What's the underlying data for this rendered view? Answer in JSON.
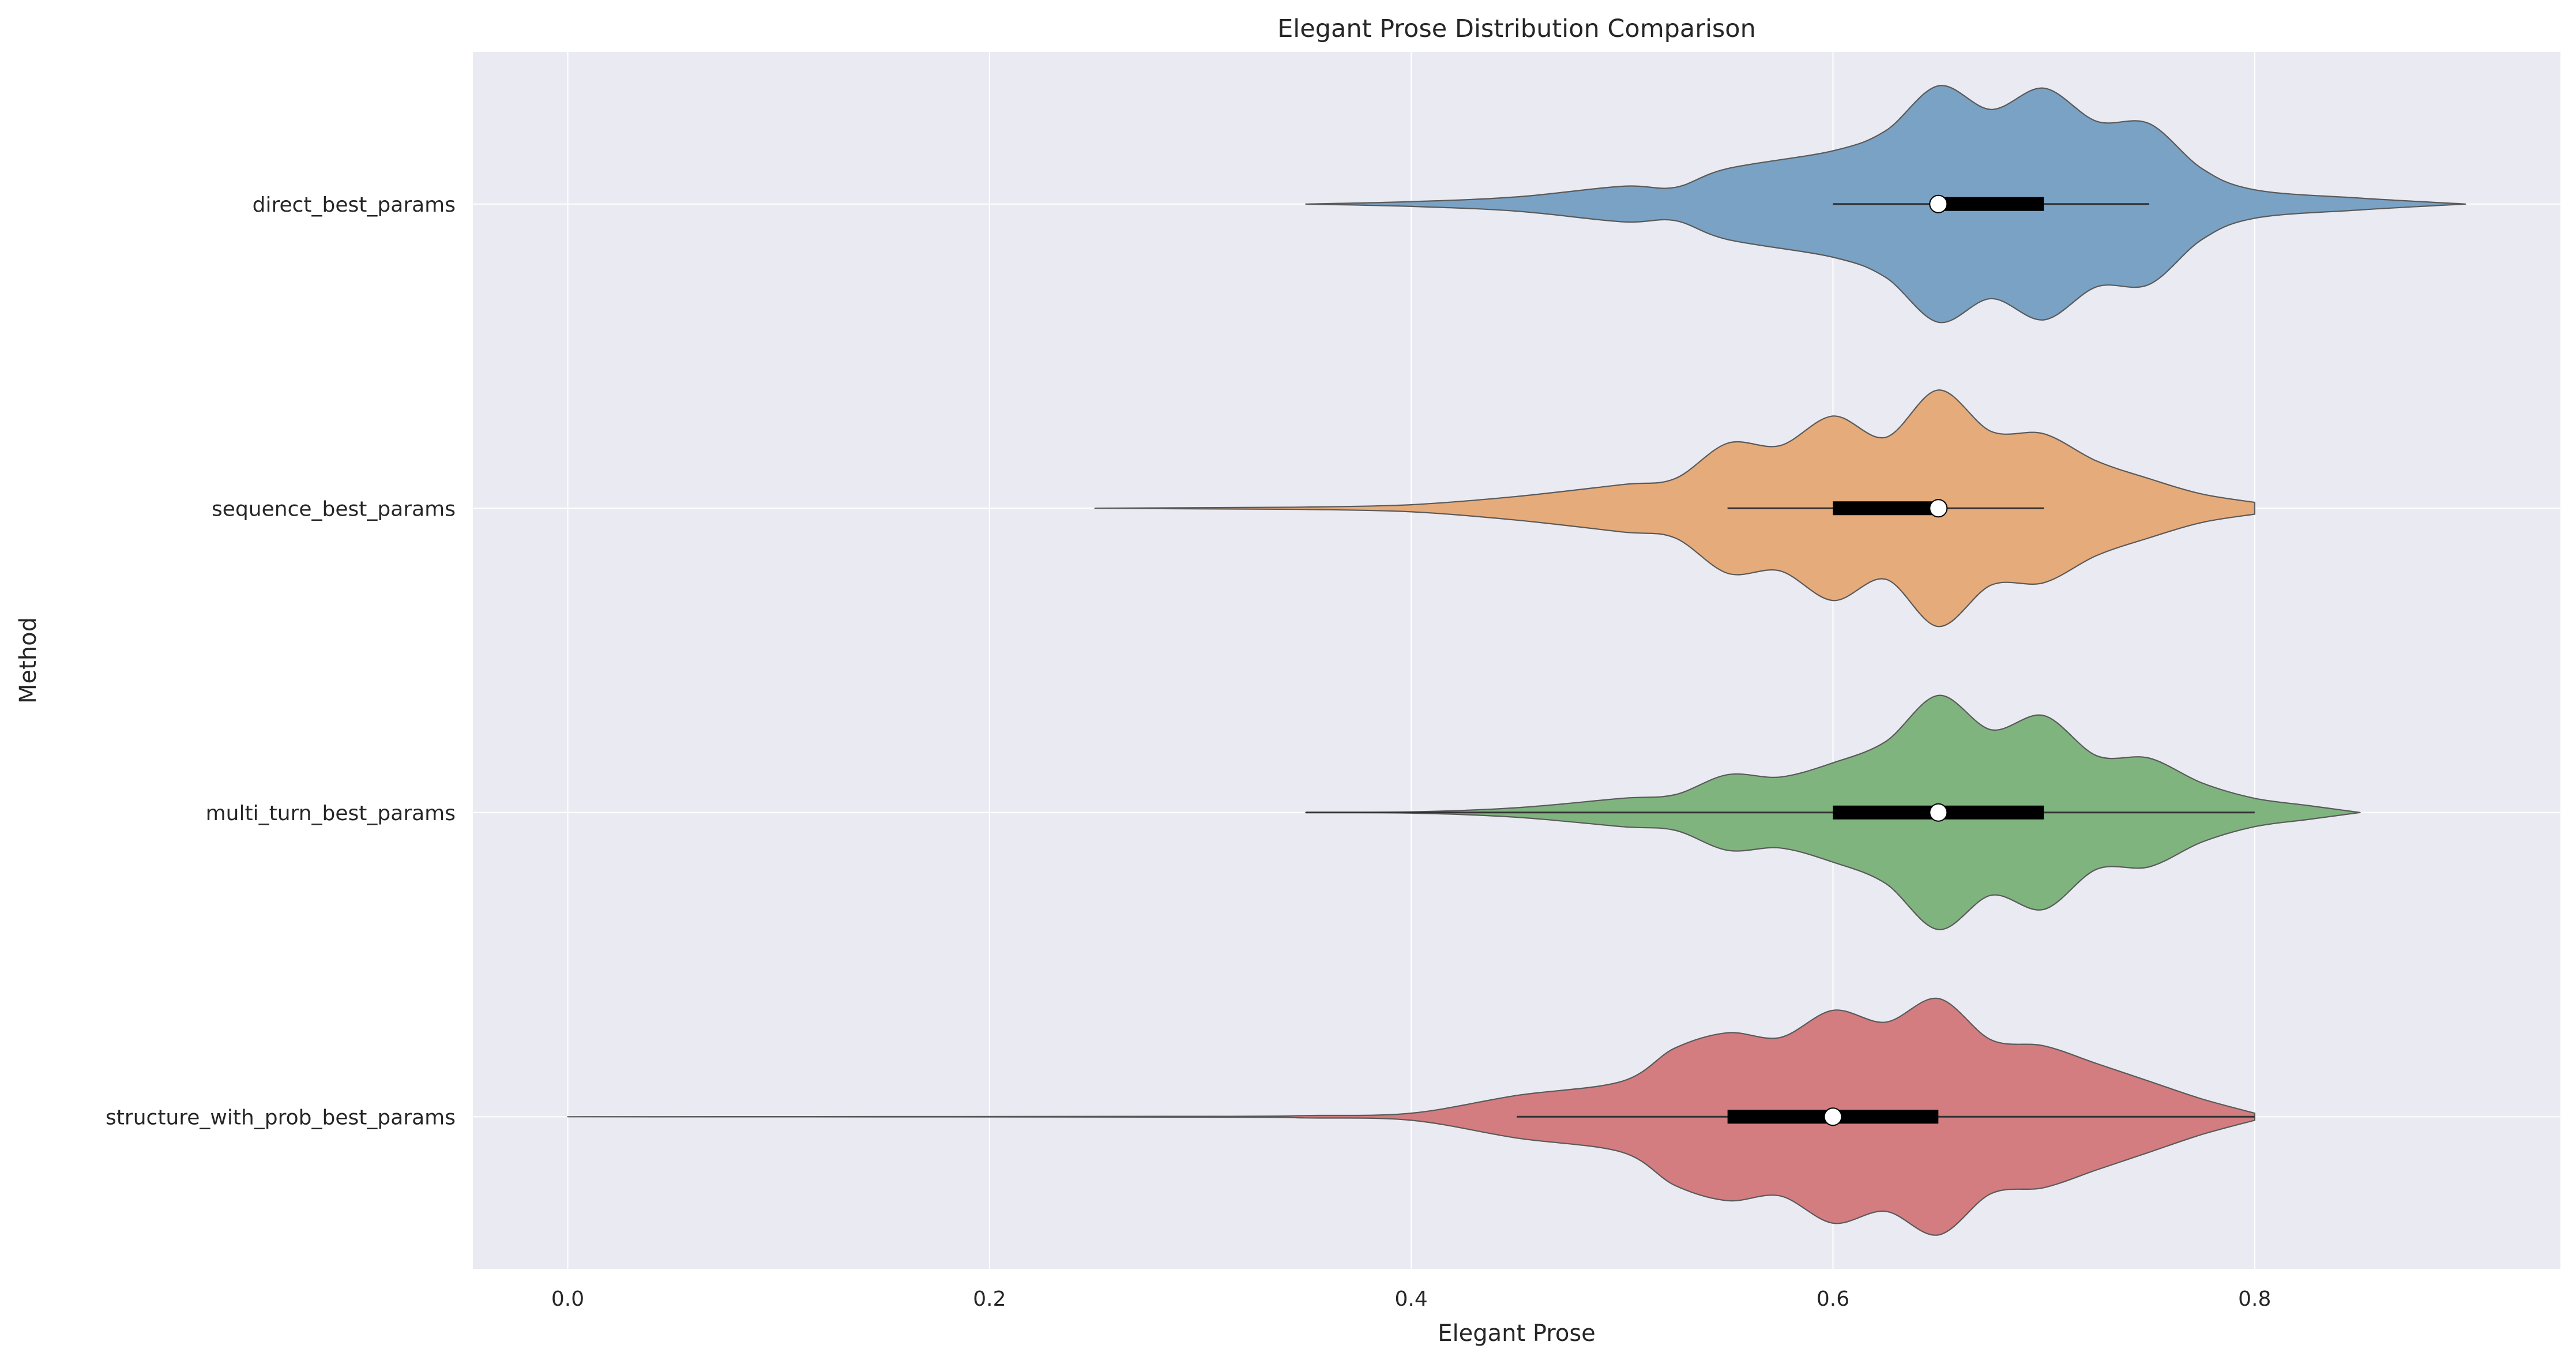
{
  "chart_data": {
    "type": "violin",
    "orientation": "horizontal",
    "title": "Elegant Prose Distribution Comparison",
    "xlabel": "Elegant Prose",
    "ylabel": "Method",
    "xlim": [
      -0.045,
      0.945
    ],
    "x_ticks": [
      "0.0",
      "0.2",
      "0.4",
      "0.6",
      "0.8"
    ],
    "grid": true,
    "legend": "none",
    "categories": [
      "direct_best_params",
      "sequence_best_params",
      "multi_turn_best_params",
      "structure_with_prob_best_params"
    ],
    "series": [
      {
        "category": "direct_best_params",
        "color": "#7aa2c4",
        "range": [
          0.35,
          0.9
        ],
        "whisker": [
          0.6,
          0.75
        ],
        "q1": 0.65,
        "q3": 0.7,
        "median": 0.65,
        "density": [
          [
            0.35,
            0.0
          ],
          [
            0.4,
            0.02
          ],
          [
            0.45,
            0.06
          ],
          [
            0.5,
            0.15
          ],
          [
            0.525,
            0.14
          ],
          [
            0.55,
            0.3
          ],
          [
            0.6,
            0.45
          ],
          [
            0.625,
            0.62
          ],
          [
            0.65,
            1.0
          ],
          [
            0.675,
            0.8
          ],
          [
            0.7,
            0.98
          ],
          [
            0.725,
            0.7
          ],
          [
            0.75,
            0.68
          ],
          [
            0.775,
            0.3
          ],
          [
            0.8,
            0.12
          ],
          [
            0.85,
            0.05
          ],
          [
            0.9,
            0.0
          ]
        ]
      },
      {
        "category": "sequence_best_params",
        "color": "#e6ab7a",
        "range": [
          0.25,
          0.8
        ],
        "whisker": [
          0.55,
          0.7
        ],
        "q1": 0.6,
        "q3": 0.65,
        "median": 0.65,
        "density": [
          [
            0.25,
            0.0
          ],
          [
            0.3,
            0.005
          ],
          [
            0.35,
            0.01
          ],
          [
            0.4,
            0.03
          ],
          [
            0.45,
            0.1
          ],
          [
            0.5,
            0.2
          ],
          [
            0.525,
            0.25
          ],
          [
            0.55,
            0.55
          ],
          [
            0.575,
            0.53
          ],
          [
            0.6,
            0.78
          ],
          [
            0.625,
            0.6
          ],
          [
            0.65,
            1.0
          ],
          [
            0.675,
            0.65
          ],
          [
            0.7,
            0.63
          ],
          [
            0.725,
            0.4
          ],
          [
            0.75,
            0.25
          ],
          [
            0.775,
            0.12
          ],
          [
            0.8,
            0.05
          ]
        ]
      },
      {
        "category": "multi_turn_best_params",
        "color": "#80b47f",
        "range": [
          0.35,
          0.85
        ],
        "whisker": [
          0.35,
          0.8
        ],
        "q1": 0.6,
        "q3": 0.7,
        "median": 0.65,
        "density": [
          [
            0.35,
            0.0
          ],
          [
            0.4,
            0.005
          ],
          [
            0.45,
            0.04
          ],
          [
            0.5,
            0.12
          ],
          [
            0.525,
            0.15
          ],
          [
            0.55,
            0.32
          ],
          [
            0.575,
            0.3
          ],
          [
            0.6,
            0.42
          ],
          [
            0.625,
            0.6
          ],
          [
            0.65,
            0.99
          ],
          [
            0.675,
            0.7
          ],
          [
            0.7,
            0.82
          ],
          [
            0.725,
            0.48
          ],
          [
            0.75,
            0.46
          ],
          [
            0.775,
            0.25
          ],
          [
            0.8,
            0.12
          ],
          [
            0.825,
            0.06
          ],
          [
            0.85,
            0.0
          ]
        ]
      },
      {
        "category": "structure_with_prob_best_params",
        "color": "#d37d81",
        "range": [
          0.0,
          0.8
        ],
        "whisker": [
          0.45,
          0.8
        ],
        "q1": 0.55,
        "q3": 0.65,
        "median": 0.6,
        "density": [
          [
            0.0,
            0.0
          ],
          [
            0.3,
            0.003
          ],
          [
            0.35,
            0.01
          ],
          [
            0.4,
            0.03
          ],
          [
            0.45,
            0.18
          ],
          [
            0.5,
            0.3
          ],
          [
            0.525,
            0.58
          ],
          [
            0.55,
            0.71
          ],
          [
            0.575,
            0.67
          ],
          [
            0.6,
            0.9
          ],
          [
            0.625,
            0.8
          ],
          [
            0.65,
            1.0
          ],
          [
            0.675,
            0.65
          ],
          [
            0.7,
            0.6
          ],
          [
            0.725,
            0.45
          ],
          [
            0.75,
            0.3
          ],
          [
            0.775,
            0.15
          ],
          [
            0.8,
            0.03
          ]
        ]
      }
    ]
  }
}
